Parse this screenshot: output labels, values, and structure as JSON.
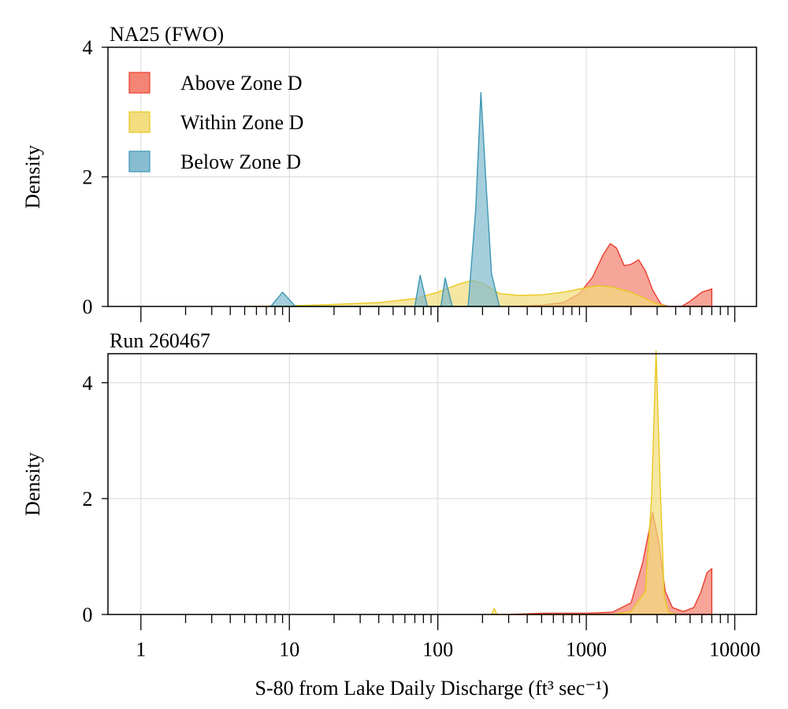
{
  "chart_data": {
    "type": "area",
    "shared_x_axis": {
      "label": "S-80 from Lake Daily Discharge (ft³ sec⁻¹)",
      "scale": "log10",
      "xlim": [
        0.6,
        14000
      ],
      "tick_labels": [
        "1",
        "10",
        "100",
        "1000",
        "10000"
      ],
      "tick_values": [
        1,
        10,
        100,
        1000,
        10000
      ]
    },
    "legend": {
      "placement": "top-left",
      "entries": [
        {
          "label": "Above Zone D",
          "color": "#E8402C",
          "fill": "#F37D6E"
        },
        {
          "label": "Within Zone D",
          "color": "#E9C921",
          "fill": "#F1DB7A"
        },
        {
          "label": "Below Zone D",
          "color": "#3D97B3",
          "fill": "#7FB9CD"
        }
      ]
    },
    "panels": [
      {
        "title": "NA25 (FWO)",
        "ylabel": "Density",
        "ylim": [
          0,
          4
        ],
        "yticks": [
          "0",
          "2",
          "4"
        ],
        "grid": true,
        "series": [
          {
            "name": "Above Zone D",
            "points": [
              [
                300,
                0
              ],
              [
                500,
                0.02
              ],
              [
                700,
                0.06
              ],
              [
                900,
                0.2
              ],
              [
                1100,
                0.45
              ],
              [
                1300,
                0.8
              ],
              [
                1450,
                0.97
              ],
              [
                1600,
                0.9
              ],
              [
                1800,
                0.63
              ],
              [
                2000,
                0.65
              ],
              [
                2250,
                0.72
              ],
              [
                2500,
                0.55
              ],
              [
                2800,
                0.25
              ],
              [
                3200,
                0.03
              ],
              [
                3600,
                0
              ],
              [
                4400,
                0
              ],
              [
                5000,
                0.08
              ],
              [
                6000,
                0.22
              ],
              [
                7000,
                0.27
              ],
              [
                7000,
                0
              ]
            ]
          },
          {
            "name": "Within Zone D",
            "points": [
              [
                5,
                0
              ],
              [
                10,
                0.01
              ],
              [
                20,
                0.03
              ],
              [
                40,
                0.06
              ],
              [
                70,
                0.12
              ],
              [
                100,
                0.22
              ],
              [
                140,
                0.35
              ],
              [
                170,
                0.4
              ],
              [
                200,
                0.36
              ],
              [
                260,
                0.2
              ],
              [
                350,
                0.17
              ],
              [
                500,
                0.18
              ],
              [
                700,
                0.22
              ],
              [
                900,
                0.27
              ],
              [
                1200,
                0.32
              ],
              [
                1500,
                0.3
              ],
              [
                2000,
                0.22
              ],
              [
                2500,
                0.12
              ],
              [
                3000,
                0.04
              ],
              [
                3500,
                0
              ]
            ]
          },
          {
            "name": "Below Zone D",
            "points": [
              [
                7.5,
                0
              ],
              [
                9,
                0.22
              ],
              [
                11,
                0
              ],
              [
                70,
                0
              ],
              [
                76,
                0.48
              ],
              [
                85,
                0
              ],
              [
                105,
                0
              ],
              [
                112,
                0.44
              ],
              [
                125,
                0
              ],
              [
                160,
                0
              ],
              [
                180,
                1.5
              ],
              [
                195,
                3.3
              ],
              [
                210,
                2.0
              ],
              [
                230,
                0.5
              ],
              [
                260,
                0
              ]
            ]
          }
        ]
      },
      {
        "title": "Run 260467",
        "ylabel": "Density",
        "ylim": [
          0,
          4.5
        ],
        "yticks": [
          "0",
          "2",
          "4"
        ],
        "grid": true,
        "series": [
          {
            "name": "Above Zone D",
            "points": [
              [
                300,
                0
              ],
              [
                500,
                0.02
              ],
              [
                1000,
                0.02
              ],
              [
                1500,
                0.04
              ],
              [
                2000,
                0.2
              ],
              [
                2400,
                0.9
              ],
              [
                2800,
                1.76
              ],
              [
                3100,
                1.2
              ],
              [
                3400,
                0.4
              ],
              [
                3800,
                0.12
              ],
              [
                4500,
                0.05
              ],
              [
                5300,
                0.12
              ],
              [
                5900,
                0.38
              ],
              [
                6500,
                0.72
              ],
              [
                7000,
                0.79
              ],
              [
                7000,
                0
              ]
            ]
          },
          {
            "name": "Within Zone D",
            "points": [
              [
                230,
                0
              ],
              [
                240,
                0.1
              ],
              [
                250,
                0
              ],
              [
                1500,
                0
              ],
              [
                2000,
                0.05
              ],
              [
                2500,
                0.4
              ],
              [
                2750,
                2.0
              ],
              [
                2950,
                4.55
              ],
              [
                3150,
                2.2
              ],
              [
                3350,
                0.3
              ],
              [
                3600,
                0.03
              ],
              [
                4200,
                0
              ]
            ]
          }
        ]
      }
    ]
  }
}
